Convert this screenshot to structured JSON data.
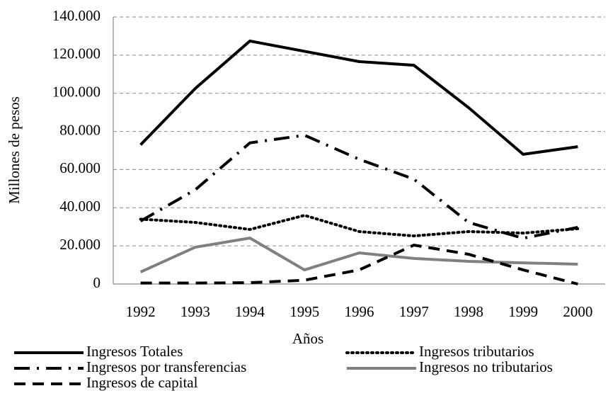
{
  "chart_data": {
    "type": "line",
    "x_label": "Años",
    "y_label": "Millones de pesos",
    "categories": [
      "1992",
      "1993",
      "1994",
      "1995",
      "1996",
      "1997",
      "1998",
      "1999",
      "2000"
    ],
    "series": [
      {
        "name": "Ingresos Totales",
        "color": "#000000",
        "dash": "solid",
        "values": [
          73000,
          102500,
          127400,
          122000,
          116600,
          114700,
          92500,
          68000,
          72000
        ]
      },
      {
        "name": "Ingresos tributarios",
        "color": "#000000",
        "dash": "dotted",
        "values": [
          34000,
          32300,
          28600,
          36000,
          27500,
          25200,
          27500,
          26700,
          29000
        ]
      },
      {
        "name": "Ingresos por transferencias",
        "color": "#000000",
        "dash": "dashdot",
        "values": [
          33000,
          49400,
          74000,
          78000,
          65400,
          55000,
          32300,
          24000,
          29700
        ]
      },
      {
        "name": "Ingresos no tributarios",
        "color": "#808080",
        "dash": "solid",
        "values": [
          6300,
          19300,
          24100,
          7400,
          16300,
          13400,
          11900,
          11100,
          10400
        ]
      },
      {
        "name": "Ingresos de capital",
        "color": "#000000",
        "dash": "dashed",
        "values": [
          500,
          500,
          700,
          2000,
          7400,
          20400,
          15600,
          7400,
          0
        ]
      }
    ],
    "ylim": [
      0,
      140000
    ],
    "yticks": [
      0,
      {
        "value": 20000,
        "label": "20.000"
      },
      {
        "value": 40000,
        "label": "40.000"
      },
      {
        "value": 60000,
        "label": "60.000"
      },
      {
        "value": 80000,
        "label": "80.000"
      },
      {
        "value": 100000,
        "label": "100.000"
      },
      {
        "value": 120000,
        "label": "120.000"
      },
      {
        "value": 140000,
        "label": "140.000"
      }
    ],
    "grid": true,
    "legend": "bottom"
  }
}
